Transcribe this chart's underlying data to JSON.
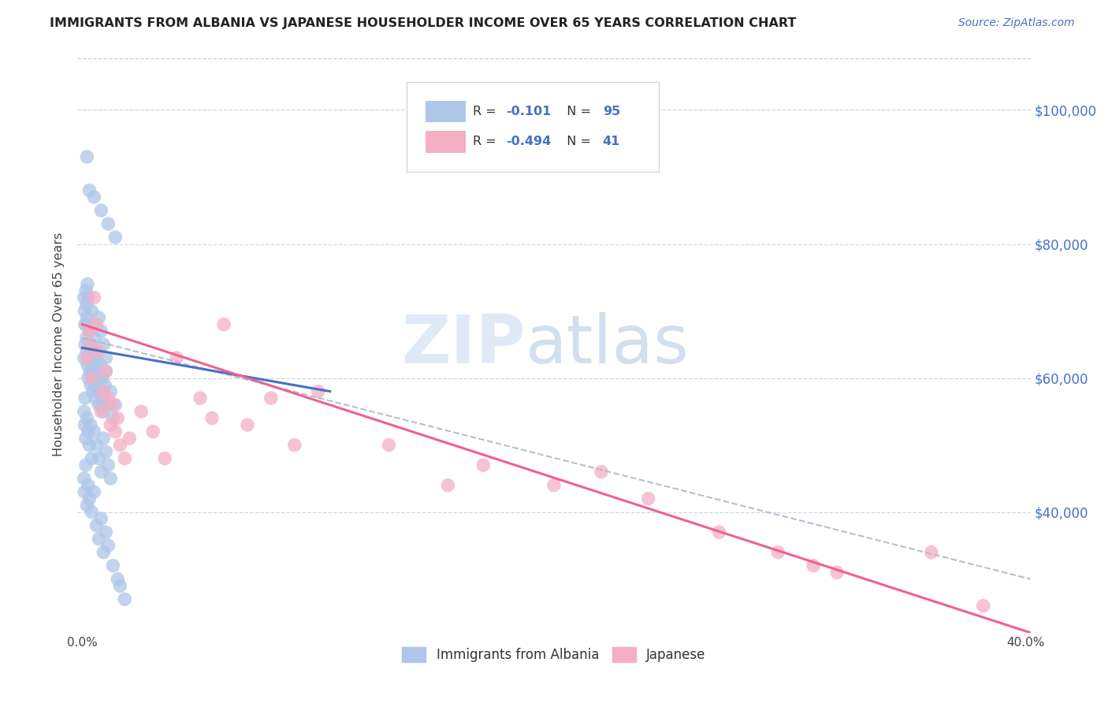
{
  "title": "IMMIGRANTS FROM ALBANIA VS JAPANESE HOUSEHOLDER INCOME OVER 65 YEARS CORRELATION CHART",
  "source": "Source: ZipAtlas.com",
  "ylabel": "Householder Income Over 65 years",
  "watermark_zip": "ZIP",
  "watermark_atlas": "atlas",
  "legend_labels": [
    "Immigrants from Albania",
    "Japanese"
  ],
  "r_albania": "-0.101",
  "n_albania": "95",
  "r_japanese": "-0.494",
  "n_japanese": "41",
  "albania_color": "#aec6e8",
  "japanese_color": "#f5afc4",
  "albania_line_color": "#4472c4",
  "japanese_line_color": "#f06090",
  "dashed_line_color": "#b0b8c8",
  "xlim": [
    -0.002,
    0.402
  ],
  "ylim": [
    22000,
    108000
  ],
  "ytick_positions": [
    40000,
    60000,
    80000,
    100000
  ],
  "ytick_labels": [
    "$40,000",
    "$60,000",
    "$80,000",
    "$100,000"
  ],
  "xtick_positions": [
    0.0,
    0.05,
    0.1,
    0.15,
    0.2,
    0.25,
    0.3,
    0.35,
    0.4
  ],
  "xtick_labels": [
    "0.0%",
    "",
    "",
    "",
    "",
    "",
    "",
    "",
    "40.0%"
  ],
  "albania_x": [
    0.0008,
    0.0012,
    0.0015,
    0.0018,
    0.002,
    0.0022,
    0.0025,
    0.0028,
    0.003,
    0.0032,
    0.0035,
    0.0038,
    0.004,
    0.0042,
    0.0045,
    0.0048,
    0.005,
    0.0052,
    0.0055,
    0.006,
    0.0062,
    0.0065,
    0.007,
    0.0072,
    0.0075,
    0.008,
    0.0082,
    0.0085,
    0.009,
    0.0092,
    0.0095,
    0.01,
    0.011,
    0.012,
    0.013,
    0.014,
    0.0008,
    0.001,
    0.0012,
    0.0015,
    0.0018,
    0.002,
    0.0022,
    0.0025,
    0.003,
    0.0035,
    0.004,
    0.0045,
    0.005,
    0.006,
    0.007,
    0.008,
    0.009,
    0.01,
    0.0008,
    0.001,
    0.0012,
    0.0015,
    0.002,
    0.0025,
    0.003,
    0.0035,
    0.004,
    0.005,
    0.006,
    0.007,
    0.008,
    0.009,
    0.01,
    0.011,
    0.012,
    0.0008,
    0.001,
    0.0015,
    0.002,
    0.0025,
    0.003,
    0.004,
    0.005,
    0.006,
    0.007,
    0.008,
    0.009,
    0.01,
    0.011,
    0.013,
    0.015,
    0.002,
    0.003,
    0.005,
    0.008,
    0.011,
    0.014,
    0.016,
    0.018
  ],
  "albania_y": [
    63000,
    65000,
    68000,
    66000,
    64000,
    62000,
    60000,
    63000,
    65000,
    61000,
    59000,
    64000,
    62000,
    60000,
    58000,
    61000,
    63000,
    59000,
    57000,
    62000,
    60000,
    58000,
    56000,
    60000,
    62000,
    58000,
    56000,
    60000,
    55000,
    57000,
    59000,
    61000,
    56000,
    58000,
    54000,
    56000,
    72000,
    70000,
    68000,
    73000,
    71000,
    69000,
    74000,
    72000,
    67000,
    65000,
    70000,
    68000,
    66000,
    64000,
    69000,
    67000,
    65000,
    63000,
    55000,
    53000,
    57000,
    51000,
    54000,
    52000,
    50000,
    53000,
    48000,
    52000,
    50000,
    48000,
    46000,
    51000,
    49000,
    47000,
    45000,
    45000,
    43000,
    47000,
    41000,
    44000,
    42000,
    40000,
    43000,
    38000,
    36000,
    39000,
    34000,
    37000,
    35000,
    32000,
    30000,
    93000,
    88000,
    87000,
    85000,
    83000,
    81000,
    29000,
    27000
  ],
  "japanese_x": [
    0.002,
    0.003,
    0.0035,
    0.004,
    0.005,
    0.006,
    0.007,
    0.008,
    0.009,
    0.01,
    0.011,
    0.012,
    0.013,
    0.014,
    0.015,
    0.016,
    0.018,
    0.02,
    0.025,
    0.03,
    0.035,
    0.04,
    0.05,
    0.055,
    0.06,
    0.07,
    0.08,
    0.09,
    0.1,
    0.13,
    0.155,
    0.17,
    0.2,
    0.22,
    0.24,
    0.27,
    0.295,
    0.31,
    0.32,
    0.36,
    0.382
  ],
  "japanese_y": [
    63000,
    67000,
    65000,
    60000,
    72000,
    68000,
    64000,
    55000,
    58000,
    61000,
    57000,
    53000,
    56000,
    52000,
    54000,
    50000,
    48000,
    51000,
    55000,
    52000,
    48000,
    63000,
    57000,
    54000,
    68000,
    53000,
    57000,
    50000,
    58000,
    50000,
    44000,
    47000,
    44000,
    46000,
    42000,
    37000,
    34000,
    32000,
    31000,
    34000,
    26000
  ],
  "alb_line_x": [
    0.0,
    0.105
  ],
  "alb_line_y": [
    64500,
    58000
  ],
  "jap_line_x": [
    0.0,
    0.402
  ],
  "jap_line_y": [
    68000,
    22000
  ],
  "dash_line_x": [
    0.0,
    0.402
  ],
  "dash_line_y": [
    66000,
    30000
  ]
}
